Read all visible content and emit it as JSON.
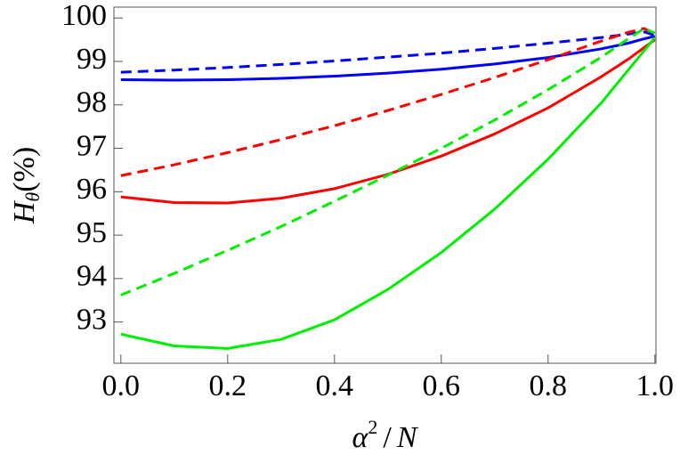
{
  "chart_data": {
    "type": "line",
    "xlabel": {
      "base": "α",
      "sup": "2",
      "op": "/",
      "var": "N"
    },
    "ylabel": {
      "base": "H",
      "sub": "θ",
      "rest": "(%)"
    },
    "x": [
      0,
      0.1,
      0.2,
      0.3,
      0.4,
      0.5,
      0.6,
      0.7,
      0.8,
      0.9,
      0.95,
      0.98,
      1.0
    ],
    "series": [
      {
        "color": "#0000ff",
        "style": "solid",
        "values": [
          98.58,
          98.57,
          98.58,
          98.61,
          98.66,
          98.73,
          98.82,
          98.94,
          99.09,
          99.29,
          99.42,
          99.52,
          99.58
        ]
      },
      {
        "color": "#0000ff",
        "style": "dashed",
        "values": [
          98.75,
          98.8,
          98.86,
          98.93,
          99.01,
          99.1,
          99.19,
          99.3,
          99.42,
          99.55,
          99.63,
          99.68,
          99.6
        ]
      },
      {
        "color": "#ff0000",
        "style": "solid",
        "values": [
          95.88,
          95.75,
          95.74,
          95.85,
          96.07,
          96.4,
          96.82,
          97.33,
          97.93,
          98.65,
          99.05,
          99.32,
          99.5
        ]
      },
      {
        "color": "#ff0000",
        "style": "dashed",
        "values": [
          96.37,
          96.62,
          96.9,
          97.2,
          97.52,
          97.87,
          98.24,
          98.63,
          99.04,
          99.47,
          99.67,
          99.76,
          99.62
        ]
      },
      {
        "color": "#00ee00",
        "style": "solid",
        "values": [
          92.72,
          92.45,
          92.39,
          92.6,
          93.05,
          93.75,
          94.6,
          95.6,
          96.75,
          98.05,
          98.8,
          99.25,
          99.55
        ]
      },
      {
        "color": "#00ee00",
        "style": "dashed",
        "values": [
          93.62,
          94.12,
          94.65,
          95.2,
          95.78,
          96.38,
          97.0,
          97.65,
          98.35,
          99.1,
          99.52,
          99.76,
          99.65
        ]
      }
    ],
    "xlim": [
      -0.013,
      1.002
    ],
    "ylim": [
      92.05,
      100.25
    ],
    "xticks": [
      {
        "value": 0,
        "label": "0.0"
      },
      0.2,
      0.4,
      0.6,
      0.8,
      {
        "value": 1,
        "label": "1.0"
      }
    ],
    "yticks": [
      93,
      94,
      95,
      96,
      97,
      98,
      99,
      100
    ],
    "grid": false
  }
}
